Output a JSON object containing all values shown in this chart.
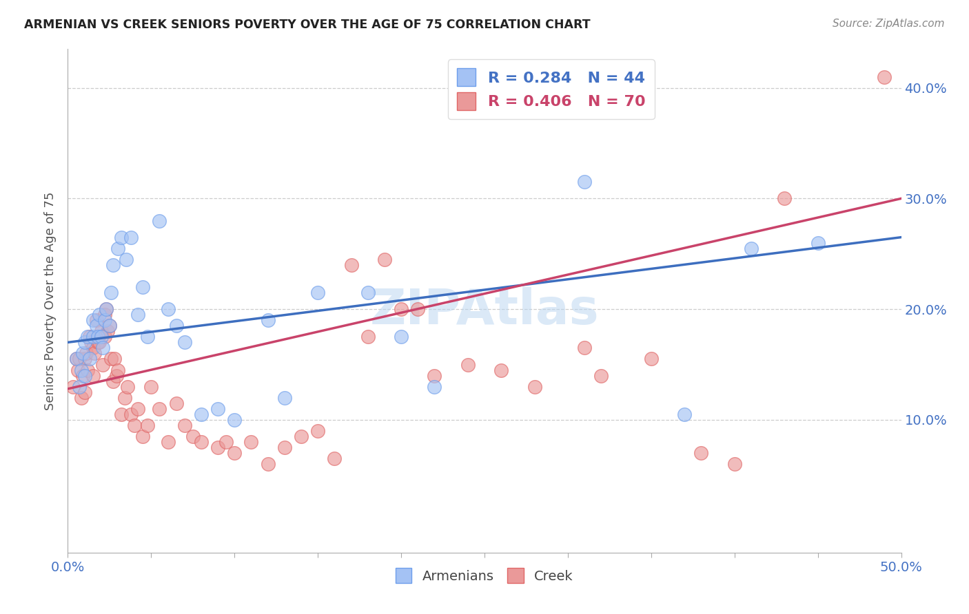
{
  "title": "ARMENIAN VS CREEK SENIORS POVERTY OVER THE AGE OF 75 CORRELATION CHART",
  "source": "Source: ZipAtlas.com",
  "ylabel": "Seniors Poverty Over the Age of 75",
  "xlim": [
    0.0,
    0.5
  ],
  "ylim": [
    -0.02,
    0.435
  ],
  "armenians_R": "0.284",
  "armenians_N": "44",
  "creek_R": "0.406",
  "creek_N": "70",
  "blue_color": "#a4c2f4",
  "blue_edge": "#6d9eeb",
  "pink_color": "#ea9999",
  "pink_edge": "#e06666",
  "blue_line_color": "#3d6ebf",
  "pink_line_color": "#c9436a",
  "watermark_color": "#b8d4f0",
  "armenians_x": [
    0.005,
    0.007,
    0.008,
    0.009,
    0.01,
    0.01,
    0.012,
    0.013,
    0.015,
    0.015,
    0.017,
    0.018,
    0.019,
    0.02,
    0.021,
    0.022,
    0.023,
    0.025,
    0.026,
    0.027,
    0.03,
    0.032,
    0.035,
    0.038,
    0.042,
    0.045,
    0.048,
    0.055,
    0.06,
    0.065,
    0.07,
    0.08,
    0.09,
    0.1,
    0.12,
    0.13,
    0.15,
    0.18,
    0.2,
    0.22,
    0.31,
    0.37,
    0.41,
    0.45
  ],
  "armenians_y": [
    0.155,
    0.13,
    0.145,
    0.16,
    0.17,
    0.14,
    0.175,
    0.155,
    0.175,
    0.19,
    0.185,
    0.175,
    0.195,
    0.175,
    0.165,
    0.19,
    0.2,
    0.185,
    0.215,
    0.24,
    0.255,
    0.265,
    0.245,
    0.265,
    0.195,
    0.22,
    0.175,
    0.28,
    0.2,
    0.185,
    0.17,
    0.105,
    0.11,
    0.1,
    0.19,
    0.12,
    0.215,
    0.215,
    0.175,
    0.13,
    0.315,
    0.105,
    0.255,
    0.26
  ],
  "creek_x": [
    0.003,
    0.005,
    0.006,
    0.007,
    0.008,
    0.009,
    0.01,
    0.01,
    0.011,
    0.012,
    0.013,
    0.014,
    0.015,
    0.015,
    0.016,
    0.017,
    0.018,
    0.019,
    0.02,
    0.021,
    0.022,
    0.022,
    0.023,
    0.024,
    0.025,
    0.026,
    0.027,
    0.028,
    0.029,
    0.03,
    0.032,
    0.034,
    0.036,
    0.038,
    0.04,
    0.042,
    0.045,
    0.048,
    0.05,
    0.055,
    0.06,
    0.065,
    0.07,
    0.075,
    0.08,
    0.09,
    0.095,
    0.1,
    0.11,
    0.12,
    0.13,
    0.14,
    0.15,
    0.16,
    0.17,
    0.18,
    0.19,
    0.2,
    0.21,
    0.22,
    0.24,
    0.26,
    0.28,
    0.31,
    0.32,
    0.35,
    0.38,
    0.4,
    0.43,
    0.49
  ],
  "creek_y": [
    0.13,
    0.155,
    0.145,
    0.155,
    0.12,
    0.14,
    0.155,
    0.125,
    0.16,
    0.145,
    0.175,
    0.17,
    0.165,
    0.14,
    0.16,
    0.19,
    0.17,
    0.17,
    0.18,
    0.15,
    0.195,
    0.175,
    0.2,
    0.18,
    0.185,
    0.155,
    0.135,
    0.155,
    0.14,
    0.145,
    0.105,
    0.12,
    0.13,
    0.105,
    0.095,
    0.11,
    0.085,
    0.095,
    0.13,
    0.11,
    0.08,
    0.115,
    0.095,
    0.085,
    0.08,
    0.075,
    0.08,
    0.07,
    0.08,
    0.06,
    0.075,
    0.085,
    0.09,
    0.065,
    0.24,
    0.175,
    0.245,
    0.2,
    0.2,
    0.14,
    0.15,
    0.145,
    0.13,
    0.165,
    0.14,
    0.155,
    0.07,
    0.06,
    0.3,
    0.41
  ],
  "blue_line_x0": 0.0,
  "blue_line_y0": 0.17,
  "blue_line_x1": 0.5,
  "blue_line_y1": 0.265,
  "pink_line_x0": 0.0,
  "pink_line_y0": 0.128,
  "pink_line_x1": 0.5,
  "pink_line_y1": 0.3
}
